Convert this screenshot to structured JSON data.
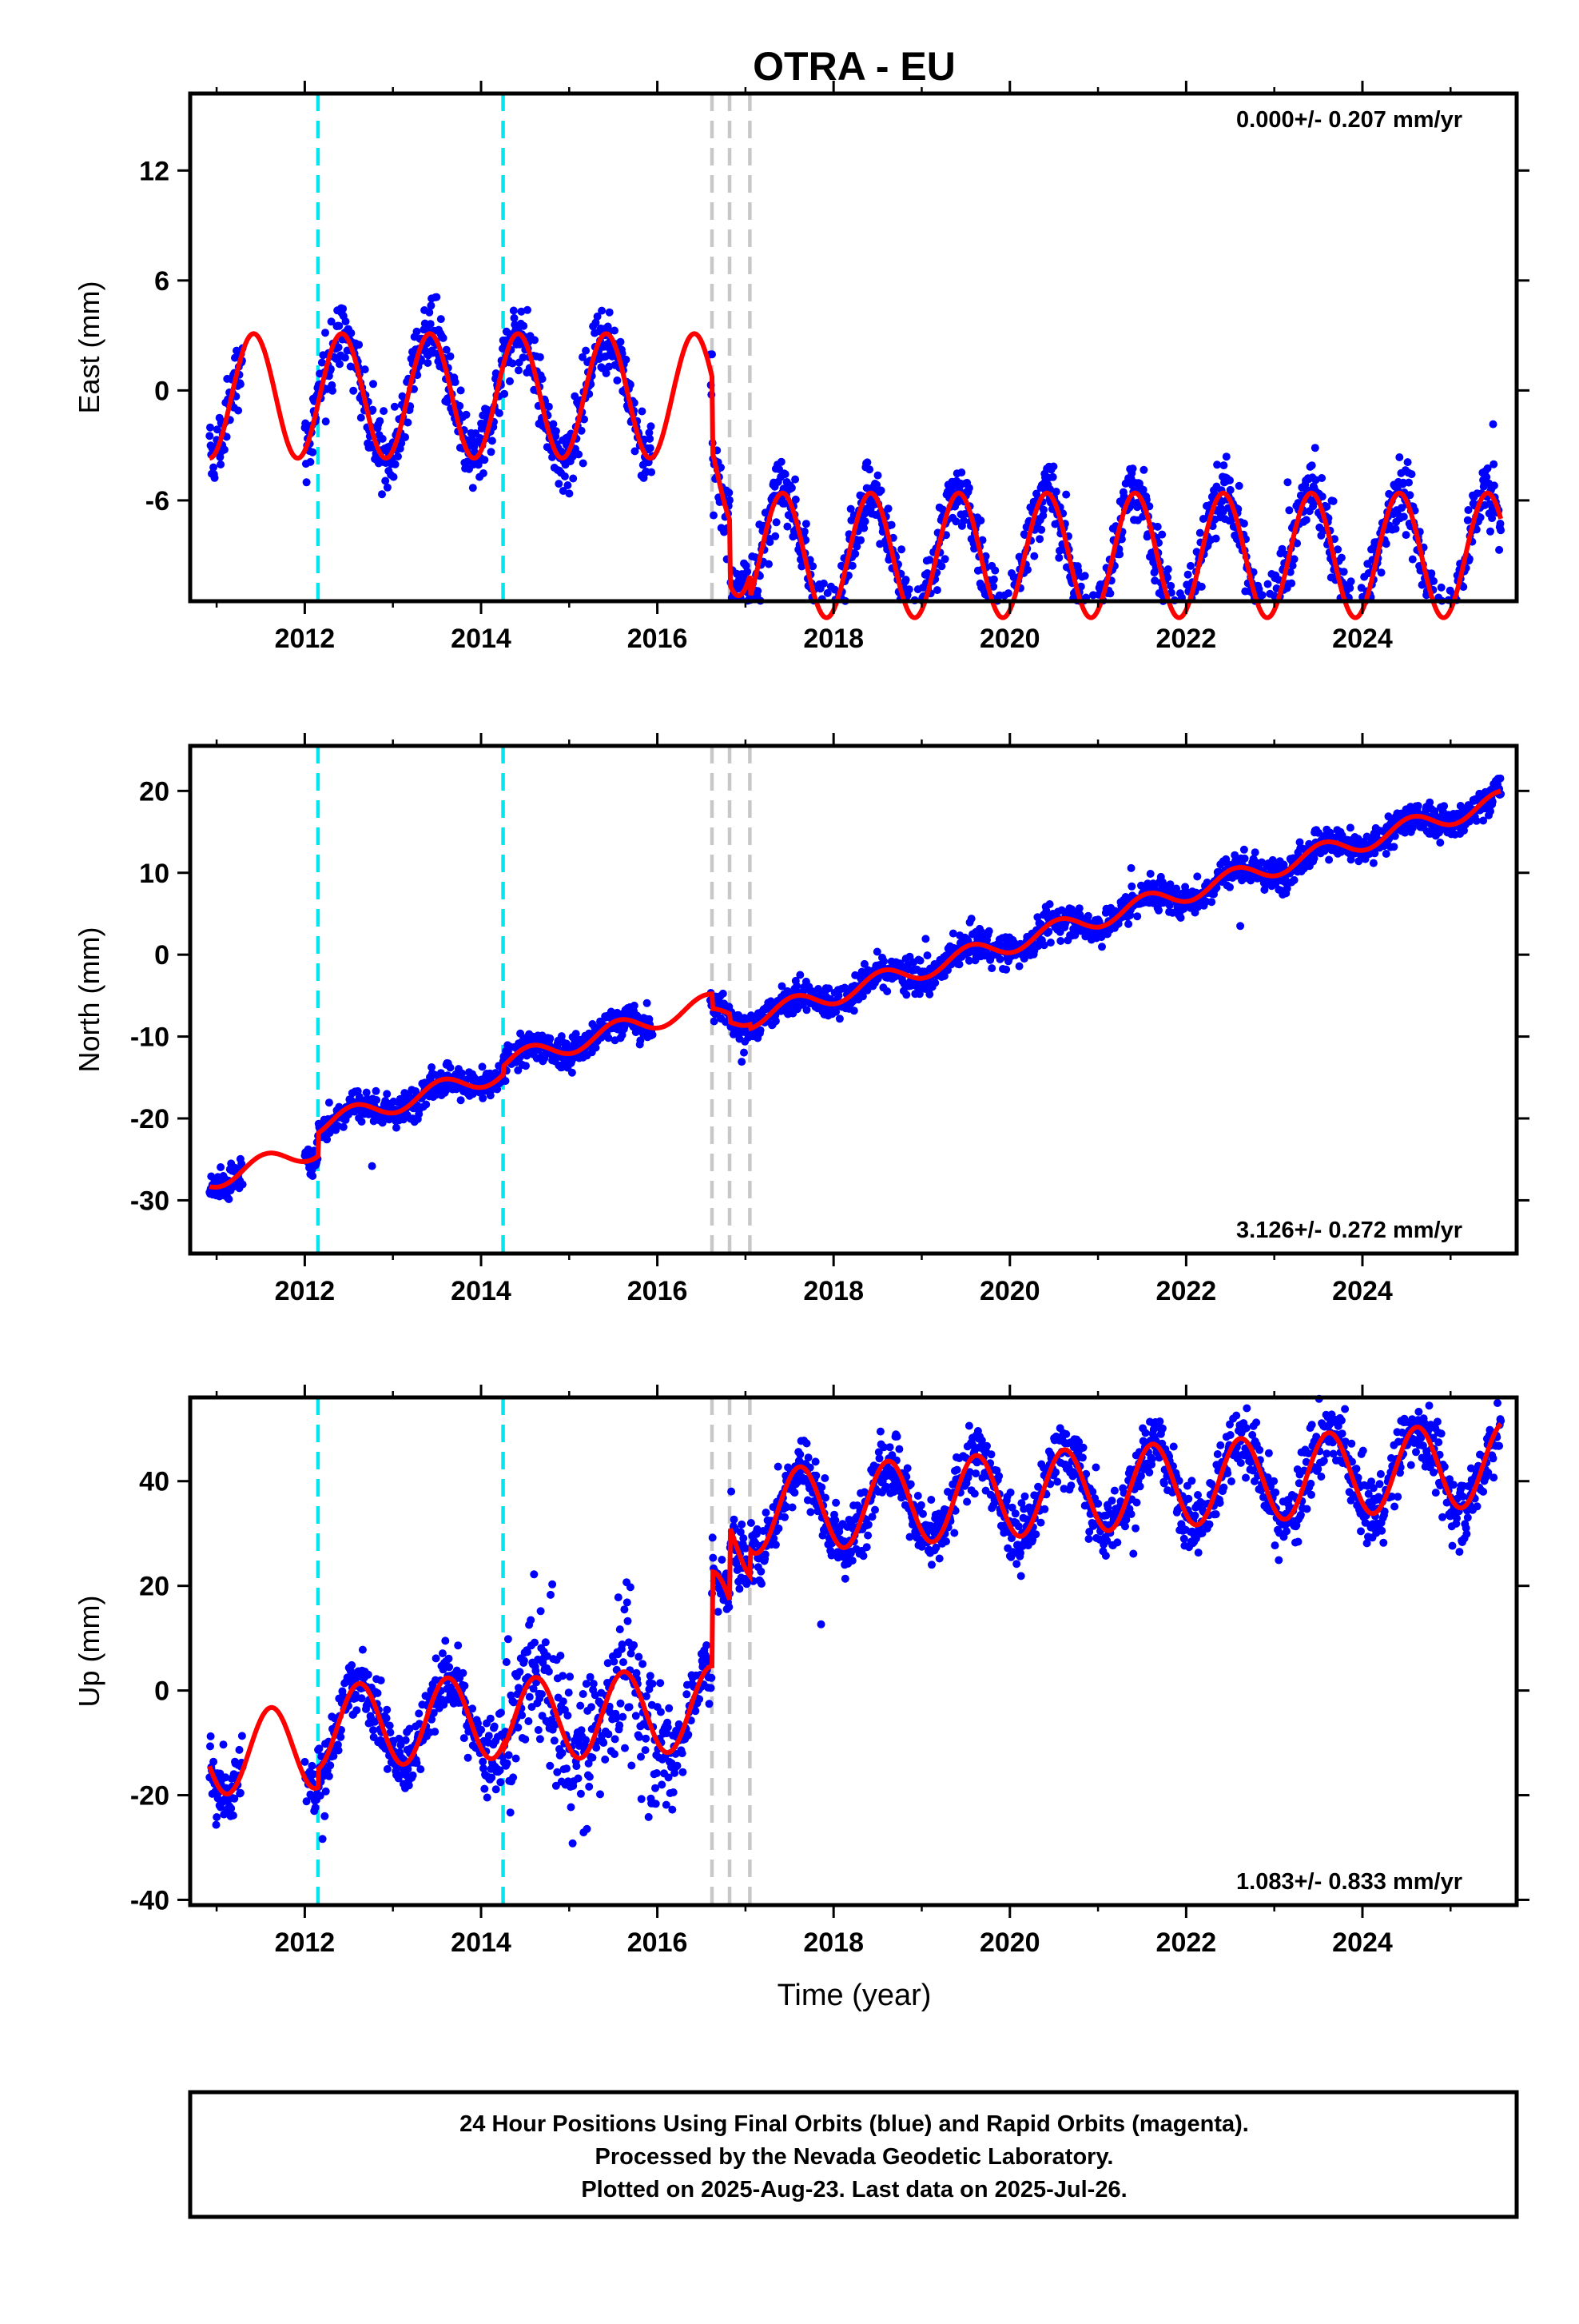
{
  "chart_data": {
    "type": "scatter",
    "title": "OTRA - EU",
    "xlabel": "Time (year)",
    "xlim": [
      2010.7,
      2025.75
    ],
    "x_ticks": [
      "2012",
      "2014",
      "2016",
      "2018",
      "2020",
      "2022",
      "2024"
    ],
    "x_tick_values": [
      2012,
      2014,
      2016,
      2018,
      2020,
      2022,
      2024
    ],
    "grid": false,
    "colors": {
      "data": "#0000ff",
      "model": "#ff0000",
      "equipment_line": "#00e5ee",
      "other_line": "#c8c8c8"
    },
    "equipment_change_years": [
      2012.15,
      2014.25
    ],
    "other_change_years": [
      2016.62,
      2016.82,
      2017.05
    ],
    "data_span": [
      2010.92,
      2025.57
    ],
    "panels": [
      {
        "name": "east",
        "ylabel": "East (mm)",
        "ylim": [
          -11.5,
          16.2
        ],
        "y_ticks": [
          "12",
          "6",
          "0",
          "-6"
        ],
        "y_tick_values": [
          12,
          6,
          0,
          -6
        ],
        "rate_label": "0.000+/- 0.207 mm/yr",
        "rate_position": "top-right",
        "model": {
          "base": -0.3,
          "rate": 0.0,
          "amplitude": 3.4,
          "peak_year_fraction": 0.42,
          "spread": 1.3,
          "segment_offsets": [
            [
              2016.62,
              -4.0
            ],
            [
              2016.82,
              -3.5
            ],
            [
              2017.05,
              -1.2
            ]
          ]
        }
      },
      {
        "name": "north",
        "ylabel": "North (mm)",
        "ylim": [
          -36.5,
          25.5
        ],
        "y_ticks": [
          "20",
          "10",
          "0",
          "-10",
          "-20",
          "-30"
        ],
        "y_tick_values": [
          20,
          10,
          0,
          -10,
          -20,
          -30
        ],
        "rate_label": "3.126+/- 0.272 mm/yr",
        "rate_position": "bottom-right",
        "model": {
          "base": -27.5,
          "rate": 3.126,
          "amplitude": 1.2,
          "peak_year_fraction": 0.55,
          "spread": 1.4,
          "segment_offsets": [
            [
              2012.15,
              2.8
            ],
            [
              2014.25,
              1.0
            ],
            [
              2016.62,
              -1.8
            ],
            [
              2016.82,
              -1.0
            ],
            [
              2017.05,
              -0.5
            ]
          ]
        }
      },
      {
        "name": "up",
        "ylabel": "Up (mm)",
        "ylim": [
          -41,
          56
        ],
        "y_ticks": [
          "40",
          "20",
          "0",
          "-20",
          "-40"
        ],
        "y_tick_values": [
          40,
          20,
          0,
          -20,
          -40
        ],
        "rate_label": "1.083+/- 0.833 mm/yr",
        "rate_position": "bottom-right",
        "model": {
          "base": -12.0,
          "rate": 1.083,
          "amplitude": 8.0,
          "peak_year_fraction": 0.62,
          "spread": 4.5,
          "segment_offsets": [
            [
              2012.15,
              3.5
            ],
            [
              2014.25,
              -1.0
            ],
            [
              2016.62,
              18.0
            ],
            [
              2016.82,
              14.0
            ],
            [
              2017.05,
              5.0
            ]
          ]
        }
      }
    ]
  },
  "caption": {
    "line1": "24 Hour Positions Using Final Orbits (blue) and Rapid Orbits (magenta).",
    "line2": "Processed by the Nevada Geodetic Laboratory.",
    "line3": "Plotted on 2025-Aug-23. Last data on 2025-Jul-26."
  }
}
